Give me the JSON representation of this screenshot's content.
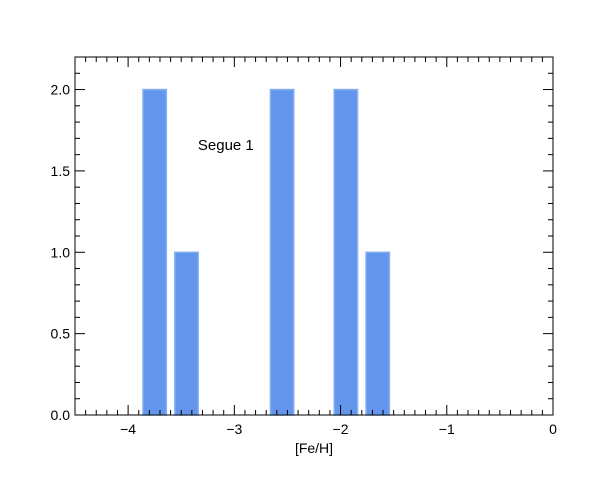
{
  "chart_data": {
    "type": "bar",
    "title": "",
    "xlabel": "[Fe/H]",
    "ylabel": "",
    "xlim": [
      -4.5,
      0
    ],
    "ylim": [
      0,
      2.2
    ],
    "grid": false,
    "bar_color": "#6495ED",
    "bar_width": 0.22,
    "bars": [
      {
        "x": -3.75,
        "value": 2
      },
      {
        "x": -3.45,
        "value": 1
      },
      {
        "x": -2.55,
        "value": 2
      },
      {
        "x": -1.95,
        "value": 2
      },
      {
        "x": -1.65,
        "value": 1
      }
    ],
    "x_ticks": [
      -4,
      -3,
      -2,
      -1,
      0
    ],
    "x_tick_labels": [
      "−4",
      "−3",
      "−2",
      "−1",
      "0"
    ],
    "y_ticks": [
      0,
      0.5,
      1,
      1.5,
      2
    ],
    "y_tick_labels": [
      "0.0",
      "0.5",
      "1.0",
      "1.5",
      "2.0"
    ],
    "annotations": [
      {
        "text": "Segue 1",
        "x": -3.08,
        "y": 1.63
      }
    ]
  }
}
